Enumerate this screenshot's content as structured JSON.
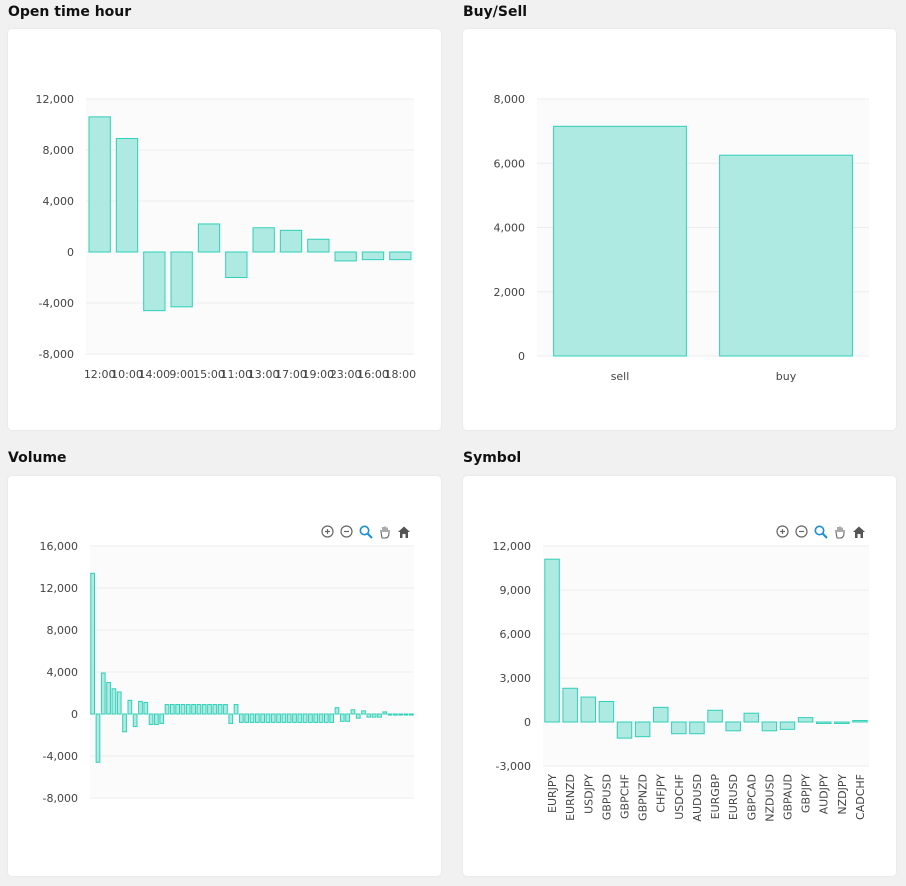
{
  "panels": {
    "open_time": {
      "title": "Open time hour"
    },
    "buy_sell": {
      "title": "Buy/Sell"
    },
    "volume": {
      "title": "Volume"
    },
    "symbol": {
      "title": "Symbol"
    }
  },
  "colors": {
    "bar_fill": "#afeae2",
    "bar_stroke": "#2fd0b8",
    "plot_bg": "#fbfbfb",
    "grid": "#ececec"
  },
  "toolbar_icons": [
    "zoom-in-icon",
    "zoom-out-icon",
    "zoom-select-icon",
    "pan-hand-icon",
    "home-reset-icon"
  ],
  "chart_data": [
    {
      "type": "bar",
      "title": "Open time hour",
      "categories": [
        "12:00",
        "10:00",
        "14:00",
        "9:00",
        "15:00",
        "11:00",
        "13:00",
        "17:00",
        "19:00",
        "23:00",
        "16:00",
        "18:00"
      ],
      "values": [
        10600,
        8900,
        -4600,
        -4300,
        2200,
        -2000,
        1900,
        1700,
        1000,
        -700,
        -600,
        -600
      ],
      "ylim": [
        -8000,
        12000
      ],
      "yticks": [
        -8000,
        -4000,
        0,
        4000,
        8000,
        12000
      ],
      "grid": true
    },
    {
      "type": "bar",
      "title": "Buy/Sell",
      "categories": [
        "sell",
        "buy"
      ],
      "values": [
        7150,
        6250
      ],
      "ylim": [
        0,
        8000
      ],
      "yticks": [
        0,
        2000,
        4000,
        6000,
        8000
      ],
      "grid": true
    },
    {
      "type": "bar",
      "title": "Volume",
      "values": [
        13400,
        -4600,
        3900,
        3000,
        2400,
        2100,
        -1700,
        1300,
        -1200,
        1200,
        1100,
        -1000,
        -1000,
        -900,
        900,
        900,
        900,
        900,
        900,
        900,
        900,
        900,
        900,
        900,
        900,
        900,
        -900,
        900,
        -800,
        -800,
        -800,
        -800,
        -800,
        -800,
        -800,
        -800,
        -800,
        -800,
        -800,
        -800,
        -800,
        -800,
        -800,
        -800,
        -800,
        -800,
        600,
        -700,
        -700,
        400,
        -400,
        300,
        -300,
        -300,
        -300,
        200,
        -100,
        -100,
        -100,
        -100,
        -100
      ],
      "ylim": [
        -8000,
        16000
      ],
      "yticks": [
        -8000,
        -4000,
        0,
        4000,
        8000,
        12000,
        16000
      ],
      "grid": true
    },
    {
      "type": "bar",
      "title": "Symbol",
      "categories": [
        "EURJPY",
        "EURNZD",
        "USDJPY",
        "GBPUSD",
        "GBPCHF",
        "GBPNZD",
        "CHFJPY",
        "USDCHF",
        "AUDUSD",
        "EURGBP",
        "EURUSD",
        "GBPCAD",
        "NZDUSD",
        "GBPAUD",
        "GBPJPY",
        "AUDJPY",
        "NZDJPY",
        "CADCHF"
      ],
      "values": [
        11100,
        2300,
        1700,
        1400,
        -1100,
        -1000,
        1000,
        -800,
        -800,
        800,
        -600,
        600,
        -600,
        -500,
        300,
        -100,
        -100,
        100
      ],
      "ylim": [
        -3000,
        12000
      ],
      "yticks": [
        -3000,
        0,
        3000,
        6000,
        9000,
        12000
      ],
      "grid": true
    }
  ]
}
